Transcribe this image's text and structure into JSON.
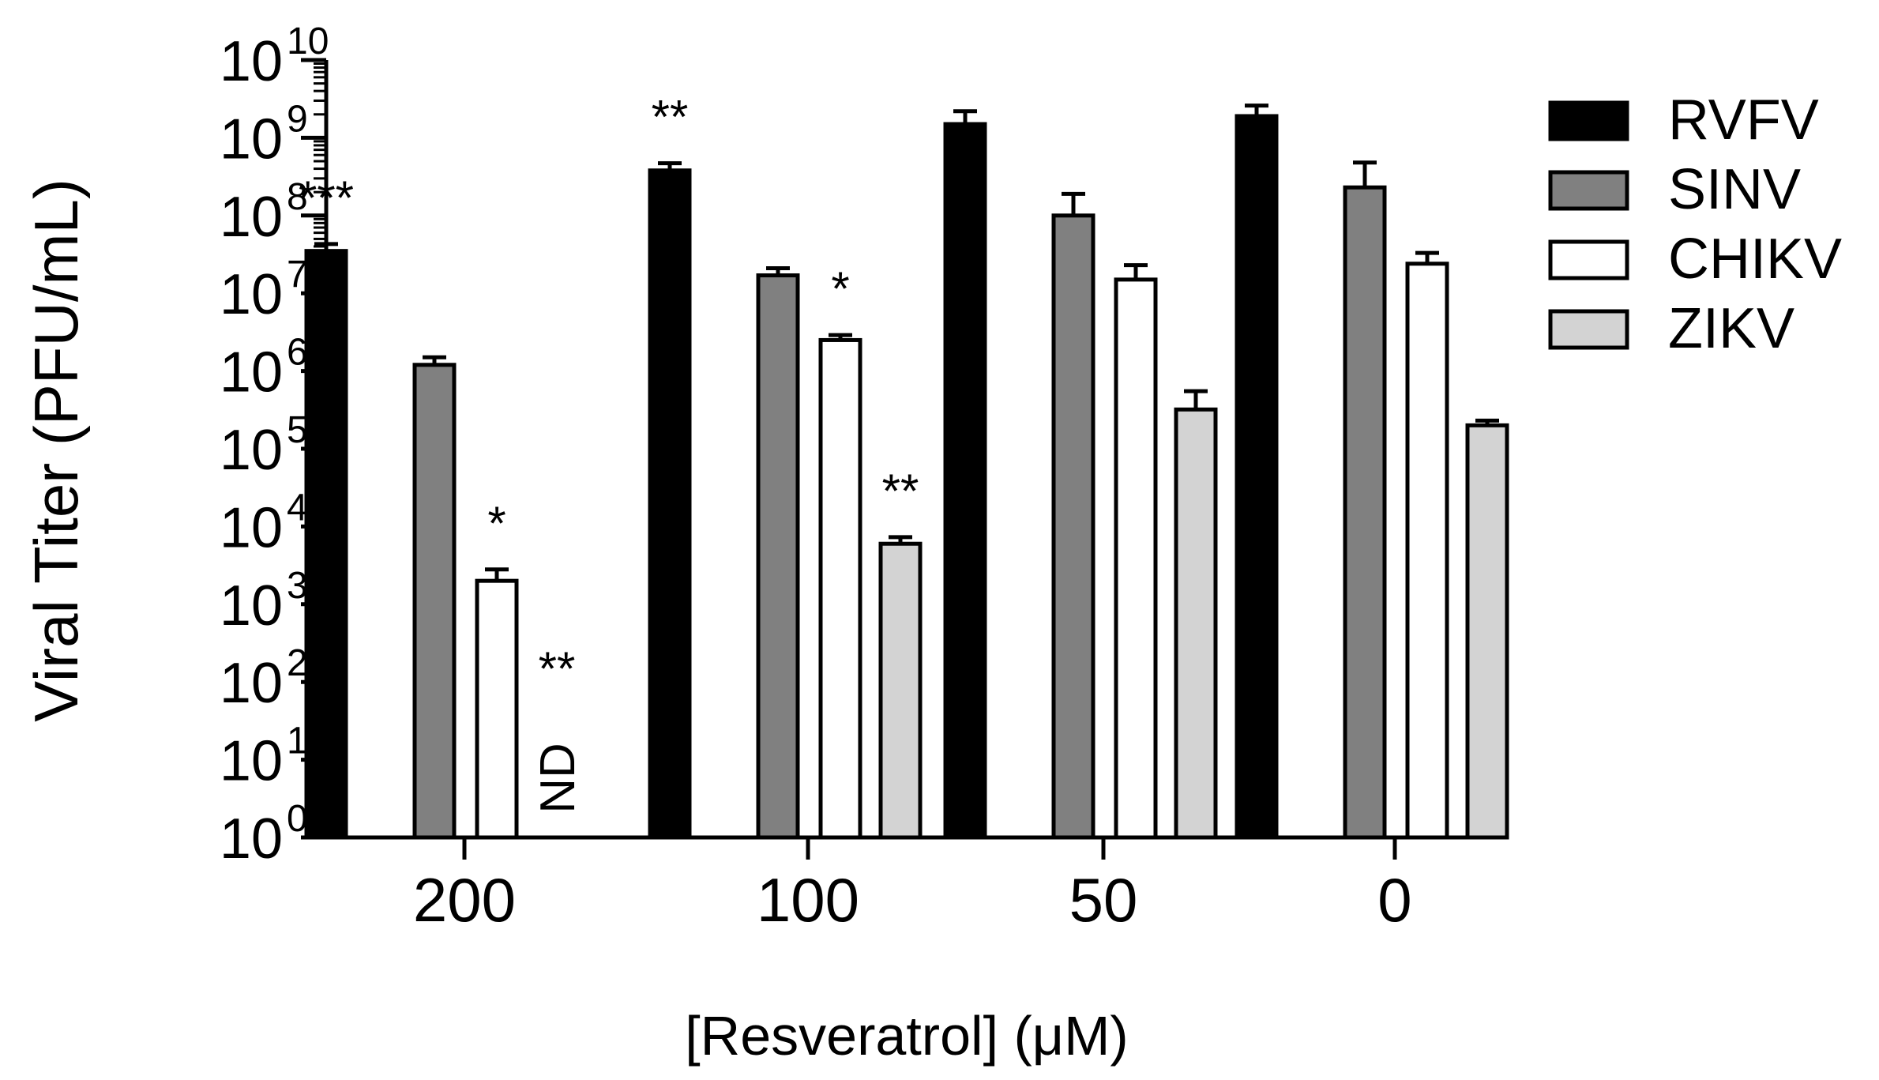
{
  "chart_data": {
    "type": "bar",
    "scale": "log10",
    "ylabel": "Viral Titer (PFU/mL)",
    "xlabel": "[Resveratrol] (μM)",
    "ylim": [
      1,
      10000000000
    ],
    "yticks": [
      {
        "base": "10",
        "exp": "0"
      },
      {
        "base": "10",
        "exp": "1"
      },
      {
        "base": "10",
        "exp": "2"
      },
      {
        "base": "10",
        "exp": "3"
      },
      {
        "base": "10",
        "exp": "4"
      },
      {
        "base": "10",
        "exp": "5"
      },
      {
        "base": "10",
        "exp": "6"
      },
      {
        "base": "10",
        "exp": "7"
      },
      {
        "base": "10",
        "exp": "8"
      },
      {
        "base": "10",
        "exp": "9"
      },
      {
        "base": "10",
        "exp": "10"
      }
    ],
    "categories": [
      "200",
      "100",
      "50",
      "0"
    ],
    "series": [
      {
        "name": "RVFV",
        "color": "#000000",
        "values": [
          35000000,
          380000000,
          1500000000,
          1900000000
        ],
        "errors": [
          43000000,
          470000000,
          2200000000,
          2600000000
        ],
        "annotations": [
          "***",
          "**",
          "",
          ""
        ]
      },
      {
        "name": "SINV",
        "color": "#808080",
        "values": [
          1200000,
          17000000,
          100000000,
          230000000
        ],
        "errors": [
          1500000,
          21000000,
          190000000,
          480000000
        ],
        "annotations": [
          "",
          "",
          "",
          ""
        ]
      },
      {
        "name": "CHIKV",
        "color": "#ffffff",
        "values": [
          2000,
          2500000,
          15000000,
          24000000
        ],
        "errors": [
          2800,
          2900000,
          23000000,
          33000000
        ],
        "annotations": [
          "*",
          "*",
          "",
          ""
        ]
      },
      {
        "name": "ZIKV",
        "color": "#d3d3d3",
        "values": [
          null,
          6000,
          320000,
          200000
        ],
        "errors": [
          null,
          7300,
          550000,
          230000
        ],
        "annotations": [
          "**",
          "**",
          "",
          ""
        ]
      }
    ],
    "nd_label": "ND",
    "legend_position": "right"
  }
}
